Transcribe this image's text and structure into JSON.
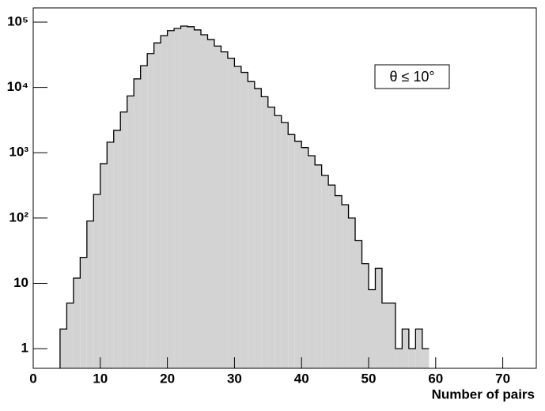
{
  "chart_data": {
    "type": "histogram",
    "xlabel": "Number of pairs",
    "annotation": "θ ≤ 10°",
    "bins": [
      4,
      5,
      6,
      7,
      8,
      9,
      10,
      11,
      12,
      13,
      14,
      15,
      16,
      17,
      18,
      19,
      20,
      21,
      22,
      23,
      24,
      25,
      26,
      27,
      28,
      29,
      30,
      31,
      32,
      33,
      34,
      35,
      36,
      37,
      38,
      39,
      40,
      41,
      42,
      43,
      44,
      45,
      46,
      47,
      48,
      49,
      50,
      51,
      52,
      53,
      54,
      55,
      56,
      57,
      58,
      59
    ],
    "values": [
      2,
      5,
      12,
      25,
      90,
      230,
      680,
      1450,
      2200,
      4200,
      7400,
      13500,
      21500,
      33000,
      48000,
      62000,
      74000,
      80000,
      87000,
      85000,
      76000,
      64000,
      54000,
      43000,
      35000,
      28000,
      21000,
      17000,
      12300,
      9600,
      7200,
      5000,
      3700,
      2900,
      1900,
      1500,
      1200,
      900,
      650,
      450,
      320,
      220,
      160,
      100,
      45,
      20,
      8,
      17,
      5,
      5,
      1,
      2,
      1,
      2,
      1,
      1
    ],
    "color": "#d3d3d3",
    "xlim": [
      0,
      75
    ],
    "xticks": [
      0,
      10,
      20,
      30,
      40,
      50,
      60,
      70
    ],
    "ylim": [
      0.5,
      165000
    ],
    "log_y": true,
    "yticks": [
      1,
      10,
      {
        "value": 100,
        "label": "10²"
      },
      {
        "value": 1000,
        "label": "10³"
      },
      {
        "value": 10000,
        "label": "10⁴"
      },
      {
        "value": 100000,
        "label": "10⁵"
      }
    ]
  }
}
